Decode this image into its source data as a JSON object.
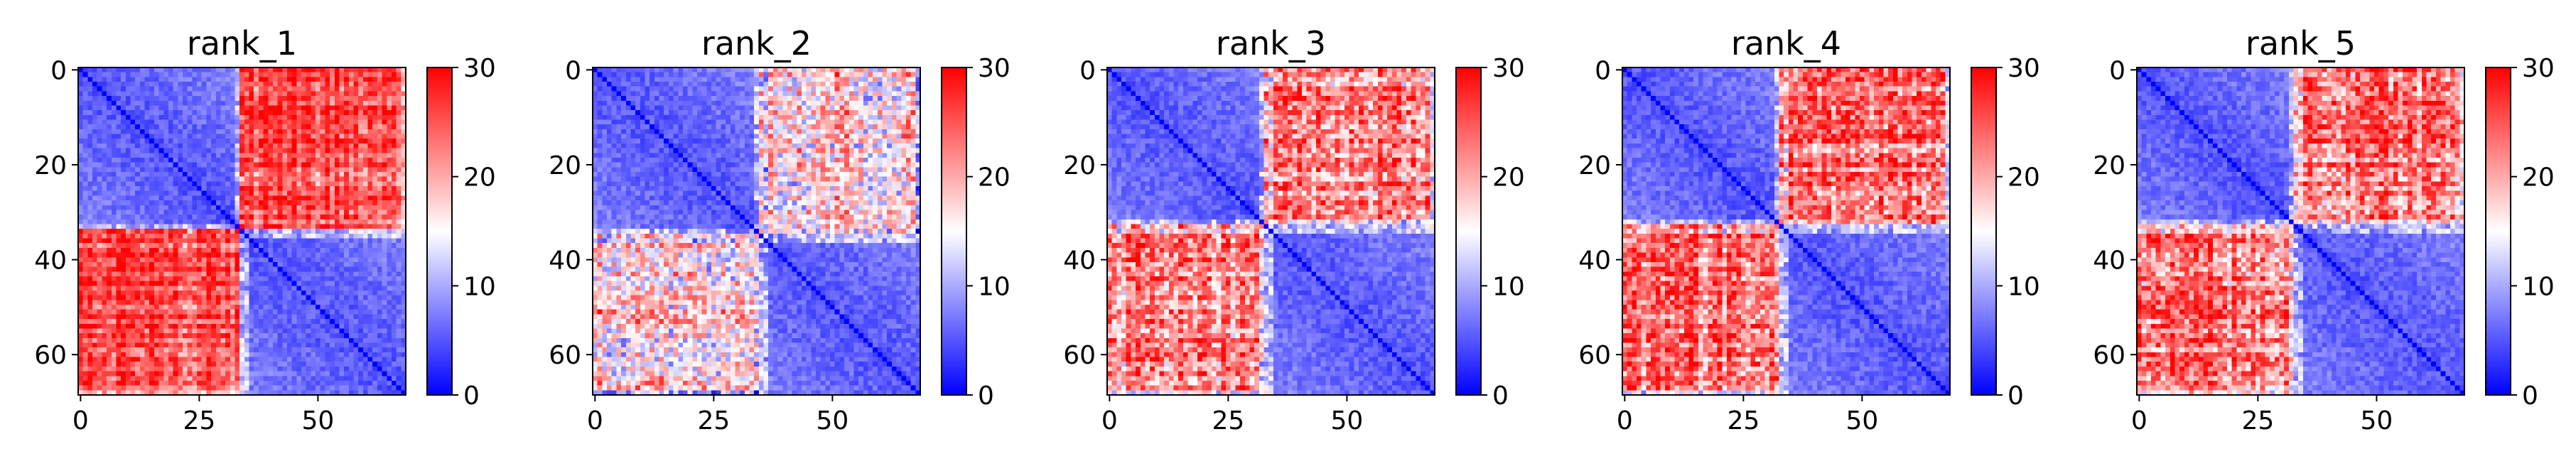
{
  "chart_data": [
    {
      "type": "heatmap",
      "title": "rank_1",
      "vmin": 0,
      "vmax": 30,
      "colormap": "bwr",
      "n": 69,
      "split": 34,
      "blocks": {
        "diagonal_mean": 5,
        "off_diagonal_mean": 26,
        "off_diagonal_noise": 4
      },
      "x_ticks": [
        "0",
        "25",
        "50"
      ],
      "y_ticks": [
        "0",
        "20",
        "40",
        "60"
      ],
      "colorbar_ticks": [
        "0",
        "10",
        "20",
        "30"
      ]
    },
    {
      "type": "heatmap",
      "title": "rank_2",
      "vmin": 0,
      "vmax": 30,
      "colormap": "bwr",
      "n": 69,
      "split": 35,
      "blocks": {
        "diagonal_mean": 5,
        "off_diagonal_mean": 17,
        "off_diagonal_noise": 7
      },
      "x_ticks": [
        "0",
        "25",
        "50"
      ],
      "y_ticks": [
        "0",
        "20",
        "40",
        "60"
      ],
      "colorbar_ticks": [
        "0",
        "10",
        "20",
        "30"
      ]
    },
    {
      "type": "heatmap",
      "title": "rank_3",
      "vmin": 0,
      "vmax": 30,
      "colormap": "bwr",
      "n": 69,
      "split": 33,
      "blocks": {
        "diagonal_mean": 5,
        "off_diagonal_mean": 22,
        "off_diagonal_noise": 6
      },
      "x_ticks": [
        "0",
        "25",
        "50"
      ],
      "y_ticks": [
        "0",
        "20",
        "40",
        "60"
      ],
      "colorbar_ticks": [
        "0",
        "10",
        "20",
        "30"
      ]
    },
    {
      "type": "heatmap",
      "title": "rank_4",
      "vmin": 0,
      "vmax": 30,
      "colormap": "bwr",
      "n": 69,
      "split": 33,
      "blocks": {
        "diagonal_mean": 5,
        "off_diagonal_mean": 23,
        "off_diagonal_noise": 6
      },
      "x_ticks": [
        "0",
        "25",
        "50"
      ],
      "y_ticks": [
        "0",
        "20",
        "40",
        "60"
      ],
      "colorbar_ticks": [
        "0",
        "10",
        "20",
        "30"
      ]
    },
    {
      "type": "heatmap",
      "title": "rank_5",
      "vmin": 0,
      "vmax": 30,
      "colormap": "bwr",
      "n": 69,
      "split": 33,
      "blocks": {
        "diagonal_mean": 5,
        "off_diagonal_mean": 23,
        "off_diagonal_noise": 6
      },
      "x_ticks": [
        "0",
        "25",
        "50"
      ],
      "y_ticks": [
        "0",
        "20",
        "40",
        "60"
      ],
      "colorbar_ticks": [
        "0",
        "10",
        "20",
        "30"
      ]
    }
  ]
}
